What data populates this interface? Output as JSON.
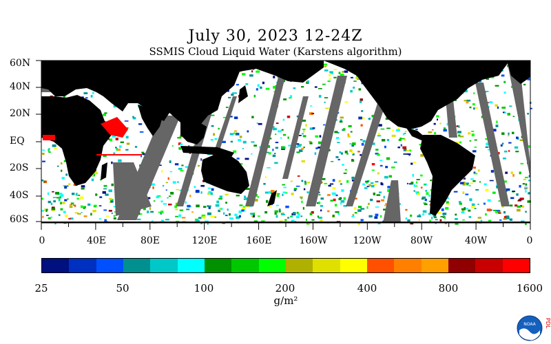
{
  "title": "July 30, 2023 12-24Z",
  "subtitle": "SSMIS Cloud Liquid Water (Karstens algorithm)",
  "lat_labels": [
    "60N",
    "40N",
    "20N",
    "EQ",
    "20S",
    "40S",
    "60S"
  ],
  "lon_labels": [
    "0",
    "40E",
    "80E",
    "120E",
    "160E",
    "160W",
    "120W",
    "80W",
    "40W",
    "0"
  ],
  "colorbar": {
    "tick_labels": [
      "25",
      "50",
      "100",
      "200",
      "400",
      "800",
      "1600"
    ],
    "units": "g/m²",
    "colors": [
      "#00107e",
      "#0030c0",
      "#0050ff",
      "#009090",
      "#00c8c8",
      "#00ffff",
      "#009000",
      "#00c800",
      "#00ff00",
      "#b0b000",
      "#e0e000",
      "#ffff00",
      "#ff5000",
      "#ff8000",
      "#ffa000",
      "#900000",
      "#c80000",
      "#ff0000"
    ]
  },
  "map": {
    "land_color": "#000000",
    "no_data_color": "#666666",
    "ocean_clear_color": "#ffffff",
    "sea_ice_mask_color": "#ff0000"
  },
  "logo": {
    "text": "NOAA",
    "side_text": "PDL"
  }
}
